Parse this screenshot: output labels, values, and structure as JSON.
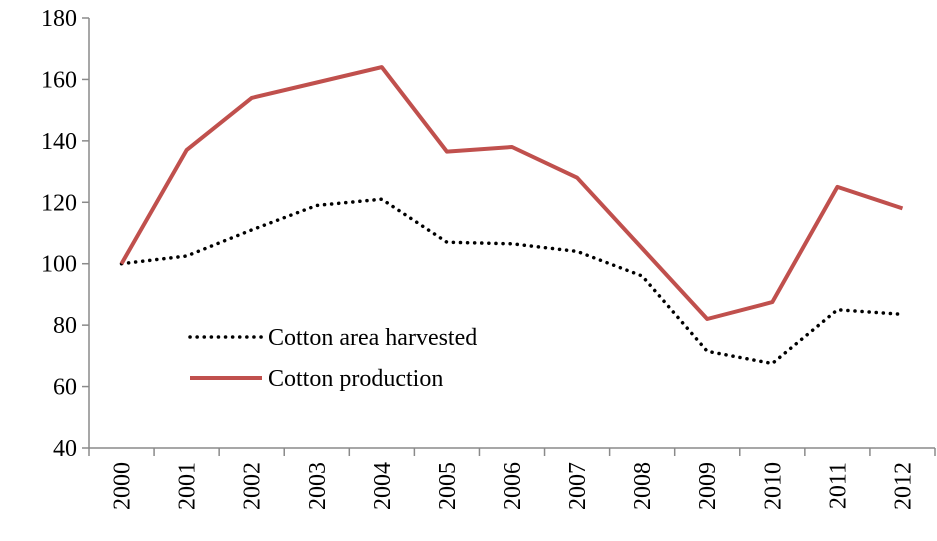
{
  "chart_data": {
    "type": "line",
    "title": "",
    "xlabel": "",
    "ylabel": "",
    "categories": [
      "2000",
      "2001",
      "2002",
      "2003",
      "2004",
      "2005",
      "2006",
      "2007",
      "2008",
      "2009",
      "2010",
      "2011",
      "2012"
    ],
    "ylim": [
      40,
      180
    ],
    "yticks": [
      40,
      60,
      80,
      100,
      120,
      140,
      160,
      180
    ],
    "grid": false,
    "legend_position": "lower-left",
    "series": [
      {
        "name": "Cotton area harvested",
        "style": "dotted",
        "color": "#000000",
        "values": [
          100,
          102.5,
          111,
          119,
          121,
          107,
          106.5,
          104,
          96,
          71.5,
          67.5,
          85,
          83.5
        ]
      },
      {
        "name": "Cotton production",
        "style": "solid",
        "color": "#c0504d",
        "values": [
          100,
          137,
          154,
          159,
          164,
          136.5,
          138,
          128,
          105,
          82,
          87.5,
          125,
          118
        ]
      }
    ]
  }
}
